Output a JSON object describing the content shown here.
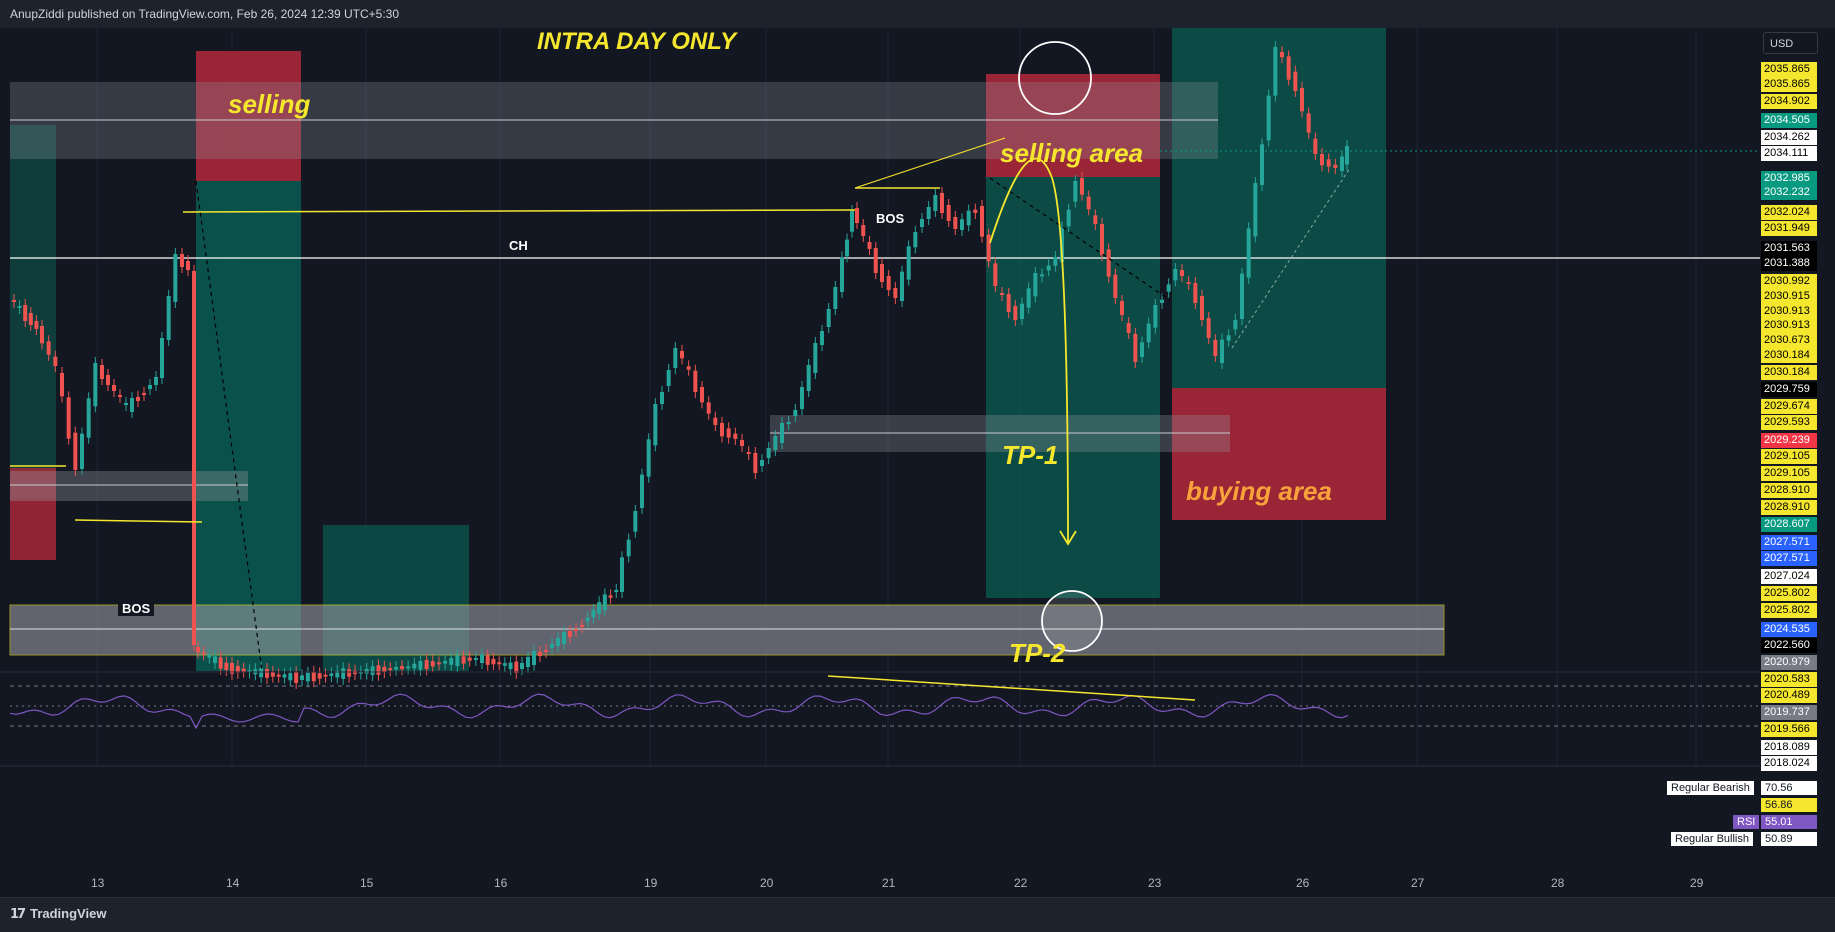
{
  "header": {
    "publisher_line": "AnupZiddi published on TradingView.com, Feb 26, 2024 12:39 UTC+5:30"
  },
  "footer": {
    "logo_glyph": "17",
    "brand": "TradingView"
  },
  "price_scale": {
    "currency": "USD",
    "labels": [
      {
        "v": "2035.865",
        "bg": "#f5e72d",
        "fg": "#000000"
      },
      {
        "v": "2035.865",
        "bg": "#f5e72d",
        "fg": "#000000"
      },
      {
        "v": "2034.902",
        "bg": "#f5e72d",
        "fg": "#000000"
      },
      {
        "v": "2034.505",
        "bg": "#089981",
        "fg": "#ffffff"
      },
      {
        "v": "2034.262",
        "bg": "#ffffff",
        "fg": "#000000"
      },
      {
        "v": "2034.111",
        "bg": "#ffffff",
        "fg": "#000000"
      },
      {
        "v": "2032.985",
        "bg": "#089981",
        "fg": "#ffffff"
      },
      {
        "v": "2032.232",
        "bg": "#089981",
        "fg": "#ffffff"
      },
      {
        "v": "2032.024",
        "bg": "#f5e72d",
        "fg": "#000000"
      },
      {
        "v": "2031.949",
        "bg": "#f5e72d",
        "fg": "#000000"
      },
      {
        "v": "2031.563",
        "bg": "#000000",
        "fg": "#ffffff"
      },
      {
        "v": "2031.388",
        "bg": "#000000",
        "fg": "#ffffff"
      },
      {
        "v": "2030.992",
        "bg": "#f5e72d",
        "fg": "#000000"
      },
      {
        "v": "2030.915",
        "bg": "#f5e72d",
        "fg": "#000000"
      },
      {
        "v": "2030.913",
        "bg": "#f5e72d",
        "fg": "#000000"
      },
      {
        "v": "2030.913",
        "bg": "#f5e72d",
        "fg": "#000000"
      },
      {
        "v": "2030.673",
        "bg": "#f5e72d",
        "fg": "#000000"
      },
      {
        "v": "2030.184",
        "bg": "#f5e72d",
        "fg": "#000000"
      },
      {
        "v": "2030.184",
        "bg": "#f5e72d",
        "fg": "#000000"
      },
      {
        "v": "2029.759",
        "bg": "#000000",
        "fg": "#ffffff"
      },
      {
        "v": "2029.674",
        "bg": "#f5e72d",
        "fg": "#000000"
      },
      {
        "v": "2029.593",
        "bg": "#f5e72d",
        "fg": "#000000"
      },
      {
        "v": "2029.239",
        "bg": "#f23645",
        "fg": "#ffffff"
      },
      {
        "v": "2029.105",
        "bg": "#f5e72d",
        "fg": "#000000"
      },
      {
        "v": "2029.105",
        "bg": "#f5e72d",
        "fg": "#000000"
      },
      {
        "v": "2028.910",
        "bg": "#f5e72d",
        "fg": "#000000"
      },
      {
        "v": "2028.910",
        "bg": "#f5e72d",
        "fg": "#000000"
      },
      {
        "v": "2028.607",
        "bg": "#089981",
        "fg": "#ffffff"
      },
      {
        "v": "2027.571",
        "bg": "#2962ff",
        "fg": "#ffffff"
      },
      {
        "v": "2027.571",
        "bg": "#2962ff",
        "fg": "#ffffff"
      },
      {
        "v": "2027.024",
        "bg": "#ffffff",
        "fg": "#000000"
      },
      {
        "v": "2025.802",
        "bg": "#f5e72d",
        "fg": "#000000"
      },
      {
        "v": "2025.802",
        "bg": "#f5e72d",
        "fg": "#000000"
      },
      {
        "v": "2024.535",
        "bg": "#2962ff",
        "fg": "#ffffff"
      },
      {
        "v": "2022.560",
        "bg": "#000000",
        "fg": "#ffffff"
      },
      {
        "v": "2020.979",
        "bg": "#787b86",
        "fg": "#ffffff"
      },
      {
        "v": "2020.583",
        "bg": "#f5e72d",
        "fg": "#000000"
      },
      {
        "v": "2020.489",
        "bg": "#f5e72d",
        "fg": "#000000"
      },
      {
        "v": "2019.737",
        "bg": "#787b86",
        "fg": "#ffffff"
      },
      {
        "v": "2019.566",
        "bg": "#f5e72d",
        "fg": "#000000"
      },
      {
        "v": "2018.089",
        "bg": "#ffffff",
        "fg": "#000000"
      },
      {
        "v": "2018.024",
        "bg": "#ffffff",
        "fg": "#000000"
      }
    ]
  },
  "rsi": {
    "name": "RSI",
    "value": "55.01",
    "upper": "70.56",
    "mid": "56.86",
    "lower": "50.89",
    "bearish_label": "Regular Bearish",
    "bullish_label": "Regular Bullish"
  },
  "time_axis": [
    "13",
    "14",
    "15",
    "16",
    "19",
    "20",
    "21",
    "22",
    "23",
    "26",
    "27",
    "28",
    "29"
  ],
  "annotations": {
    "title": "INTRA DAY ONLY",
    "selling": "selling",
    "selling_area": "selling area",
    "buying_area": "buying area",
    "tp1": "TP-1",
    "tp2": "TP-2",
    "bos_left": "BOS",
    "bos_top": "BOS",
    "ch": "CH"
  },
  "colors": {
    "up": "#26a69a",
    "down": "#ef5350",
    "annotation_yellow": "#f5e72d",
    "buying_area_text": "#f7a23a",
    "zone_red": "#b2283a",
    "zone_green": "#0b5c52"
  }
}
